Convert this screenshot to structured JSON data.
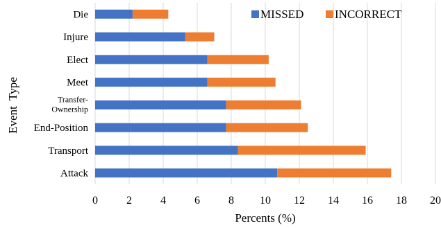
{
  "chart_data": {
    "type": "bar",
    "orientation": "horizontal",
    "stacked": true,
    "categories": [
      "Die",
      "Injure",
      "Elect",
      "Meet",
      "Transfer-Ownership",
      "End-Position",
      "Transport",
      "Attack"
    ],
    "category_display": [
      [
        "Die"
      ],
      [
        "Injure"
      ],
      [
        "Elect"
      ],
      [
        "Meet"
      ],
      [
        "Transfer-",
        "Ownership"
      ],
      [
        "End-Position"
      ],
      [
        "Transport"
      ],
      [
        "Attack"
      ]
    ],
    "series": [
      {
        "name": "MISSED",
        "color": "#4472C4",
        "values": [
          2.2,
          5.3,
          6.6,
          6.6,
          7.7,
          7.7,
          8.4,
          10.7
        ]
      },
      {
        "name": "INCORRECT",
        "color": "#ED7D31",
        "values": [
          2.1,
          1.7,
          3.6,
          4.0,
          4.4,
          4.8,
          7.5,
          6.7
        ]
      }
    ],
    "xlabel": "Percents (%)",
    "ylabel": "Event  Type",
    "xlim": [
      0,
      20
    ],
    "xticks": [
      "0",
      "2",
      "4",
      "6",
      "8",
      "10",
      "12",
      "14",
      "16",
      "18",
      "20"
    ],
    "grid": true,
    "legend_position": "top-right"
  }
}
